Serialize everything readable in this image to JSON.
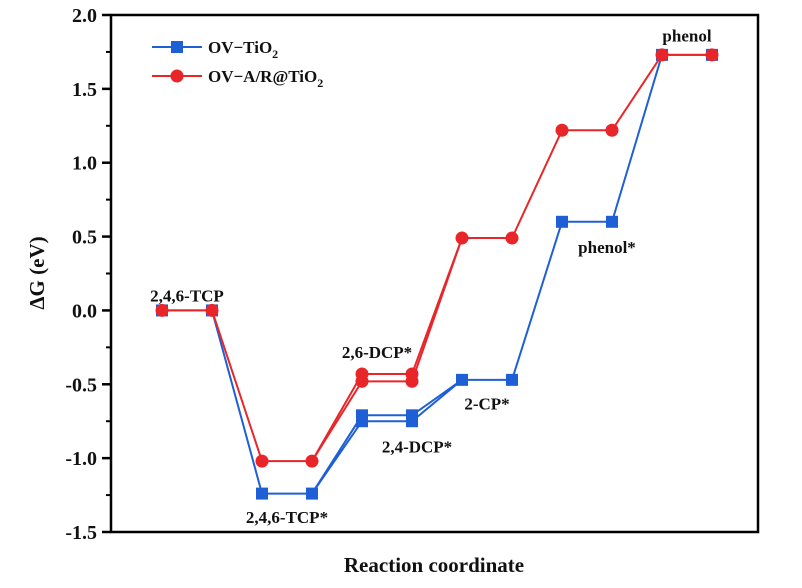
{
  "chart_data": {
    "type": "line",
    "title": "",
    "xlabel": "Reaction coordinate",
    "ylabel": "ΔG (eV)",
    "ylim": [
      -1.5,
      2.0
    ],
    "yticks": [
      "-1.5",
      "-1.0",
      "-0.5",
      "0.0",
      "0.5",
      "1.0",
      "1.5",
      "2.0"
    ],
    "ytick_values": [
      -1.5,
      -1.0,
      -0.5,
      0.0,
      0.5,
      1.0,
      1.5,
      2.0
    ],
    "grid": false,
    "legend_position": "top-left",
    "x": [
      1,
      2,
      3,
      4,
      5,
      6,
      7,
      8,
      9,
      10,
      11,
      12
    ],
    "series": [
      {
        "name": "OV−TiO",
        "sub": "2",
        "color": "#1f5fd6",
        "marker": "square",
        "values": [
          0,
          0,
          -1.24,
          -1.24,
          -0.71,
          -0.71,
          -0.47,
          -0.47,
          0.6,
          0.6,
          1.73,
          1.73
        ],
        "branch_values": {
          "5": -0.75,
          "6": -0.75
        }
      },
      {
        "name": "OV−A/R@TiO",
        "sub": "2",
        "color": "#e8262a",
        "marker": "circle",
        "values": [
          0,
          0,
          -1.02,
          -1.02,
          -0.43,
          -0.43,
          0.49,
          0.49,
          1.22,
          1.22,
          1.73,
          1.73
        ],
        "branch_values": {
          "5": -0.48,
          "6": -0.48
        }
      }
    ],
    "annotations": [
      {
        "text": "2,4,6-TCP",
        "x": 1.5,
        "y": 0.1
      },
      {
        "text": "2,4,6-TCP*",
        "x": 3.5,
        "y": -1.4
      },
      {
        "text": "2,6-DCP*",
        "x": 5.3,
        "y": -0.28
      },
      {
        "text": "2,4-DCP*",
        "x": 6.1,
        "y": -0.92
      },
      {
        "text": "2-CP*",
        "x": 7.5,
        "y": -0.63
      },
      {
        "text": "phenol*",
        "x": 9.9,
        "y": 0.43
      },
      {
        "text": "phenol",
        "x": 11.5,
        "y": 1.86
      }
    ]
  }
}
